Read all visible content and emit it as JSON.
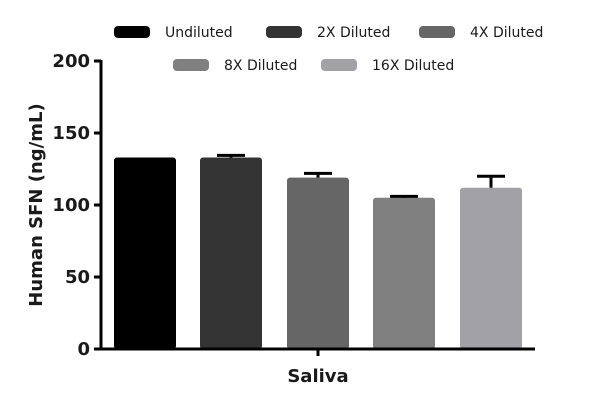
{
  "chart_data": {
    "type": "bar",
    "title": "",
    "xlabel": "",
    "ylabel": "Human SFN (ng/mL)",
    "ylim": [
      0,
      200
    ],
    "yticks": [
      0,
      50,
      100,
      150,
      200
    ],
    "grid": false,
    "legend_position": "top",
    "categories": [
      "Saliva"
    ],
    "series": [
      {
        "name": "Undiluted",
        "values": [
          133
        ],
        "error": [
          0
        ],
        "color": "#000000"
      },
      {
        "name": "2X Diluted",
        "values": [
          133
        ],
        "error": [
          1.5
        ],
        "color": "#333333"
      },
      {
        "name": "4X Diluted",
        "values": [
          119
        ],
        "error": [
          3
        ],
        "color": "#666666"
      },
      {
        "name": "8X Diluted",
        "values": [
          105
        ],
        "error": [
          1
        ],
        "color": "#808080"
      },
      {
        "name": "16X Diluted",
        "values": [
          112
        ],
        "error": [
          8
        ],
        "color": "#a2a2a6"
      }
    ]
  }
}
